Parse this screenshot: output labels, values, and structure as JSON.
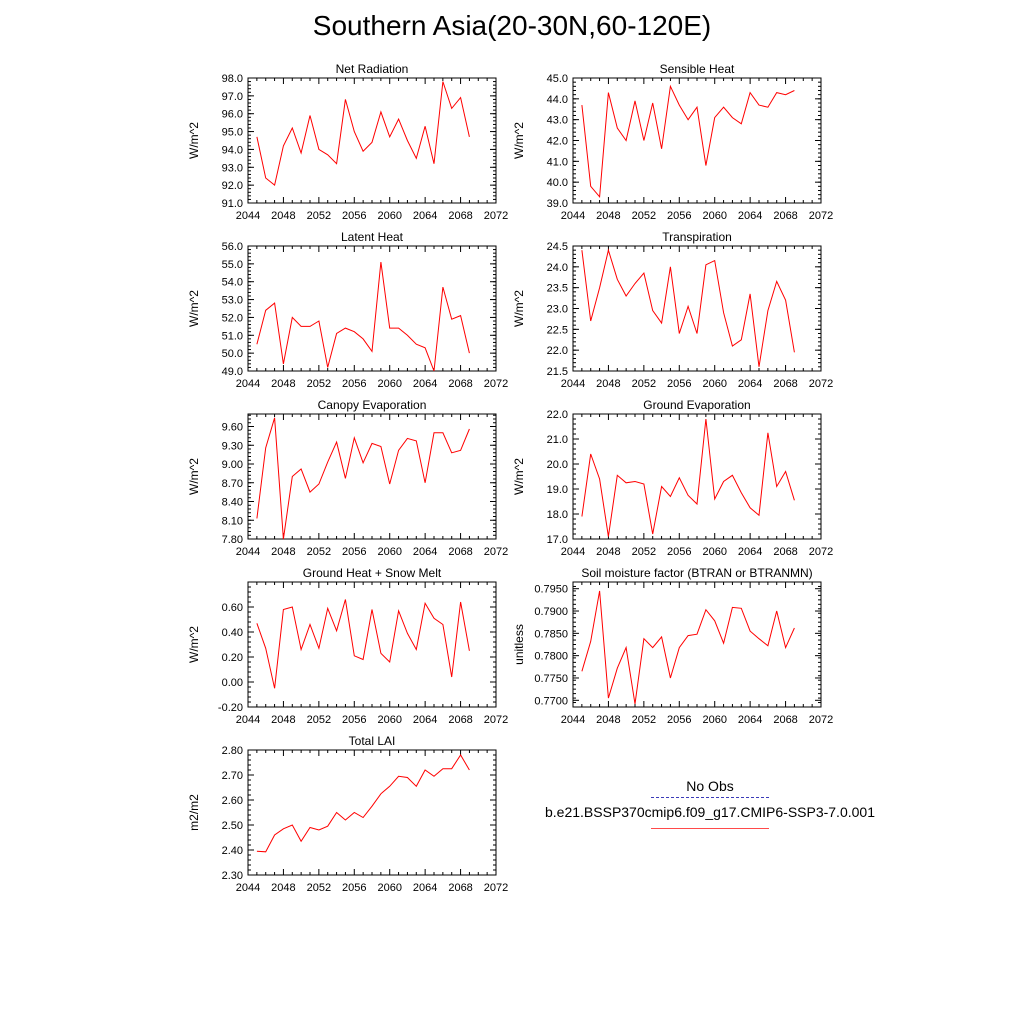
{
  "title": "Southern Asia(20-30N,60-120E)",
  "colors": {
    "model_line": "#ff0000",
    "obs_line": "#3b3bb8",
    "frame": "#000000"
  },
  "legend": {
    "obs_label": "No Obs",
    "run_label": "b.e21.BSSP370cmip6.f09_g17.CMIP6-SSP3-7.0.001"
  },
  "chart_data": [
    {
      "type": "line",
      "title": "Net Radiation",
      "ylabel": "W/m^2",
      "xlabel": "",
      "xlim": [
        2044,
        2072
      ],
      "ylim": [
        91.0,
        98.0
      ],
      "xticks": [
        "2044",
        "2048",
        "2052",
        "2056",
        "2060",
        "2064",
        "2068",
        "2072"
      ],
      "yticks": [
        "91.0",
        "92.0",
        "93.0",
        "94.0",
        "95.0",
        "96.0",
        "97.0",
        "98.0"
      ],
      "x": [
        2045,
        2046,
        2047,
        2048,
        2049,
        2050,
        2051,
        2052,
        2053,
        2054,
        2055,
        2056,
        2057,
        2058,
        2059,
        2060,
        2061,
        2062,
        2063,
        2064,
        2065,
        2066,
        2067,
        2068,
        2069
      ],
      "values": [
        94.7,
        92.4,
        92.0,
        94.2,
        95.2,
        93.8,
        95.9,
        94.0,
        93.7,
        93.2,
        96.8,
        95.0,
        93.9,
        94.4,
        96.1,
        94.7,
        95.7,
        94.5,
        93.5,
        95.3,
        93.2,
        97.8,
        96.3,
        96.9,
        94.7
      ]
    },
    {
      "type": "line",
      "title": "Sensible Heat",
      "ylabel": "W/m^2",
      "xlabel": "",
      "xlim": [
        2044,
        2072
      ],
      "ylim": [
        39.0,
        45.0
      ],
      "xticks": [
        "2044",
        "2048",
        "2052",
        "2056",
        "2060",
        "2064",
        "2068",
        "2072"
      ],
      "yticks": [
        "39.0",
        "40.0",
        "41.0",
        "42.0",
        "43.0",
        "44.0",
        "45.0"
      ],
      "x": [
        2045,
        2046,
        2047,
        2048,
        2049,
        2050,
        2051,
        2052,
        2053,
        2054,
        2055,
        2056,
        2057,
        2058,
        2059,
        2060,
        2061,
        2062,
        2063,
        2064,
        2065,
        2066,
        2067,
        2068,
        2069
      ],
      "values": [
        43.7,
        39.8,
        39.3,
        44.3,
        42.6,
        42.0,
        43.9,
        42.0,
        43.8,
        41.6,
        44.6,
        43.7,
        43.0,
        43.6,
        40.8,
        43.1,
        43.6,
        43.1,
        42.8,
        44.3,
        43.7,
        43.6,
        44.3,
        44.2,
        44.4
      ]
    },
    {
      "type": "line",
      "title": "Latent Heat",
      "ylabel": "W/m^2",
      "xlabel": "",
      "xlim": [
        2044,
        2072
      ],
      "ylim": [
        49.0,
        56.0
      ],
      "xticks": [
        "2044",
        "2048",
        "2052",
        "2056",
        "2060",
        "2064",
        "2068",
        "2072"
      ],
      "yticks": [
        "49.0",
        "50.0",
        "51.0",
        "52.0",
        "53.0",
        "54.0",
        "55.0",
        "56.0"
      ],
      "x": [
        2045,
        2046,
        2047,
        2048,
        2049,
        2050,
        2051,
        2052,
        2053,
        2054,
        2055,
        2056,
        2057,
        2058,
        2059,
        2060,
        2061,
        2062,
        2063,
        2064,
        2065,
        2066,
        2067,
        2068,
        2069
      ],
      "values": [
        50.5,
        52.4,
        52.8,
        49.4,
        52.0,
        51.5,
        51.5,
        51.8,
        49.2,
        51.1,
        51.4,
        51.2,
        50.8,
        50.1,
        55.1,
        51.4,
        51.4,
        51.0,
        50.5,
        50.3,
        49.0,
        53.7,
        51.9,
        52.1,
        50.0
      ]
    },
    {
      "type": "line",
      "title": "Transpiration",
      "ylabel": "W/m^2",
      "xlabel": "",
      "xlim": [
        2044,
        2072
      ],
      "ylim": [
        21.5,
        24.5
      ],
      "xticks": [
        "2044",
        "2048",
        "2052",
        "2056",
        "2060",
        "2064",
        "2068",
        "2072"
      ],
      "yticks": [
        "21.5",
        "22.0",
        "22.5",
        "23.0",
        "23.5",
        "24.0",
        "24.5"
      ],
      "x": [
        2045,
        2046,
        2047,
        2048,
        2049,
        2050,
        2051,
        2052,
        2053,
        2054,
        2055,
        2056,
        2057,
        2058,
        2059,
        2060,
        2061,
        2062,
        2063,
        2064,
        2065,
        2066,
        2067,
        2068,
        2069
      ],
      "values": [
        24.4,
        22.7,
        23.5,
        24.4,
        23.7,
        23.3,
        23.6,
        23.85,
        22.95,
        22.65,
        24.0,
        22.4,
        23.05,
        22.4,
        24.05,
        24.15,
        22.9,
        22.1,
        22.25,
        23.35,
        21.6,
        22.95,
        23.65,
        23.2,
        21.95
      ]
    },
    {
      "type": "line",
      "title": "Canopy Evaporation",
      "ylabel": "W/m^2",
      "xlabel": "",
      "xlim": [
        2044,
        2072
      ],
      "ylim": [
        7.8,
        9.8
      ],
      "xticks": [
        "2044",
        "2048",
        "2052",
        "2056",
        "2060",
        "2064",
        "2068",
        "2072"
      ],
      "yticks": [
        "7.80",
        "8.10",
        "8.40",
        "8.70",
        "9.00",
        "9.30",
        "9.60"
      ],
      "x": [
        2045,
        2046,
        2047,
        2048,
        2049,
        2050,
        2051,
        2052,
        2053,
        2054,
        2055,
        2056,
        2057,
        2058,
        2059,
        2060,
        2061,
        2062,
        2063,
        2064,
        2065,
        2066,
        2067,
        2068,
        2069
      ],
      "values": [
        8.13,
        9.26,
        9.74,
        7.8,
        8.8,
        8.92,
        8.55,
        8.68,
        9.03,
        9.35,
        8.77,
        9.42,
        9.02,
        9.33,
        9.28,
        8.68,
        9.22,
        9.41,
        9.37,
        8.7,
        9.5,
        9.5,
        9.18,
        9.22,
        9.56
      ]
    },
    {
      "type": "line",
      "title": "Ground Evaporation",
      "ylabel": "W/m^2",
      "xlabel": "",
      "xlim": [
        2044,
        2072
      ],
      "ylim": [
        17.0,
        22.0
      ],
      "xticks": [
        "2044",
        "2048",
        "2052",
        "2056",
        "2060",
        "2064",
        "2068",
        "2072"
      ],
      "yticks": [
        "17.0",
        "18.0",
        "19.0",
        "20.0",
        "21.0",
        "22.0"
      ],
      "x": [
        2045,
        2046,
        2047,
        2048,
        2049,
        2050,
        2051,
        2052,
        2053,
        2054,
        2055,
        2056,
        2057,
        2058,
        2059,
        2060,
        2061,
        2062,
        2063,
        2064,
        2065,
        2066,
        2067,
        2068,
        2069
      ],
      "values": [
        17.9,
        20.4,
        19.4,
        17.1,
        19.55,
        19.25,
        19.3,
        19.2,
        17.2,
        19.1,
        18.7,
        19.45,
        18.75,
        18.4,
        21.8,
        18.6,
        19.3,
        19.55,
        18.85,
        18.25,
        17.95,
        21.25,
        19.1,
        19.7,
        18.55
      ]
    },
    {
      "type": "line",
      "title": "Ground Heat + Snow Melt",
      "ylabel": "W/m^2",
      "xlabel": "",
      "xlim": [
        2044,
        2072
      ],
      "ylim": [
        -0.2,
        0.8
      ],
      "xticks": [
        "2044",
        "2048",
        "2052",
        "2056",
        "2060",
        "2064",
        "2068",
        "2072"
      ],
      "yticks": [
        "-0.20",
        "0.00",
        "0.20",
        "0.40",
        "0.60"
      ],
      "x": [
        2045,
        2046,
        2047,
        2048,
        2049,
        2050,
        2051,
        2052,
        2053,
        2054,
        2055,
        2056,
        2057,
        2058,
        2059,
        2060,
        2061,
        2062,
        2063,
        2064,
        2065,
        2066,
        2067,
        2068,
        2069
      ],
      "values": [
        0.47,
        0.27,
        -0.05,
        0.58,
        0.6,
        0.26,
        0.46,
        0.27,
        0.59,
        0.41,
        0.66,
        0.21,
        0.18,
        0.58,
        0.23,
        0.16,
        0.57,
        0.39,
        0.26,
        0.63,
        0.51,
        0.46,
        0.04,
        0.64,
        0.25
      ]
    },
    {
      "type": "line",
      "title": "Soil moisture factor (BTRAN or BTRANMN)",
      "ylabel": "unitless",
      "xlabel": "",
      "xlim": [
        2044,
        2072
      ],
      "ylim": [
        0.7685,
        0.7965
      ],
      "xticks": [
        "2044",
        "2048",
        "2052",
        "2056",
        "2060",
        "2064",
        "2068",
        "2072"
      ],
      "yticks": [
        "0.7700",
        "0.7750",
        "0.7800",
        "0.7850",
        "0.7900",
        "0.7950"
      ],
      "x": [
        2045,
        2046,
        2047,
        2048,
        2049,
        2050,
        2051,
        2052,
        2053,
        2054,
        2055,
        2056,
        2057,
        2058,
        2059,
        2060,
        2061,
        2062,
        2063,
        2064,
        2065,
        2066,
        2067,
        2068,
        2069
      ],
      "values": [
        0.7765,
        0.7832,
        0.7945,
        0.7705,
        0.7772,
        0.7818,
        0.7692,
        0.7838,
        0.7818,
        0.7842,
        0.775,
        0.7818,
        0.7845,
        0.7848,
        0.7903,
        0.7878,
        0.7828,
        0.7908,
        0.7906,
        0.7855,
        0.7838,
        0.7822,
        0.79,
        0.7818,
        0.7862
      ]
    },
    {
      "type": "line",
      "title": "Total LAI",
      "ylabel": "m2/m2",
      "xlabel": "",
      "xlim": [
        2044,
        2072
      ],
      "ylim": [
        2.3,
        2.8
      ],
      "xticks": [
        "2044",
        "2048",
        "2052",
        "2056",
        "2060",
        "2064",
        "2068",
        "2072"
      ],
      "yticks": [
        "2.30",
        "2.40",
        "2.50",
        "2.60",
        "2.70",
        "2.80"
      ],
      "x": [
        2045,
        2046,
        2047,
        2048,
        2049,
        2050,
        2051,
        2052,
        2053,
        2054,
        2055,
        2056,
        2057,
        2058,
        2059,
        2060,
        2061,
        2062,
        2063,
        2064,
        2065,
        2066,
        2067,
        2068,
        2069
      ],
      "values": [
        2.395,
        2.393,
        2.46,
        2.485,
        2.5,
        2.435,
        2.49,
        2.48,
        2.495,
        2.55,
        2.52,
        2.55,
        2.53,
        2.575,
        2.625,
        2.655,
        2.695,
        2.69,
        2.655,
        2.72,
        2.695,
        2.725,
        2.725,
        2.78,
        2.72
      ]
    }
  ]
}
